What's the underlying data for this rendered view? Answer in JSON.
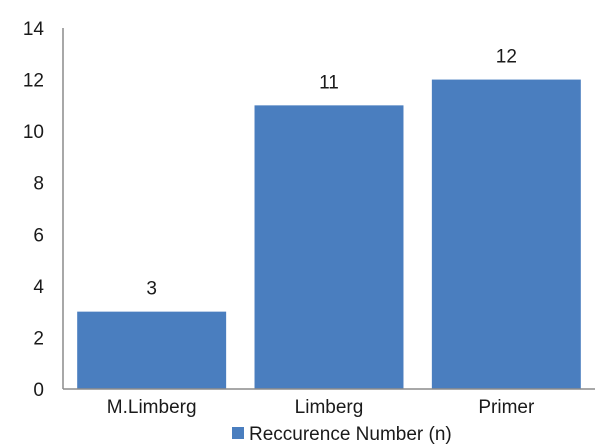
{
  "chart_data": {
    "type": "bar",
    "categories": [
      "M.Limberg",
      "Limberg",
      "Primer"
    ],
    "series": [
      {
        "name": "Reccurence Number (n)",
        "values": [
          3,
          11,
          12
        ],
        "color": "#4a7ebf"
      }
    ],
    "data_labels": [
      "3",
      "11",
      "12"
    ],
    "ylim": [
      0,
      14
    ],
    "yticks": [
      0,
      2,
      4,
      6,
      8,
      10,
      12,
      14
    ],
    "grid": false,
    "legend": "bottom",
    "title": "",
    "xlabel": "",
    "ylabel": ""
  },
  "colors": {
    "axis": "#8c8c8c",
    "text": "#1a1a1a",
    "background": "#ffffff"
  }
}
